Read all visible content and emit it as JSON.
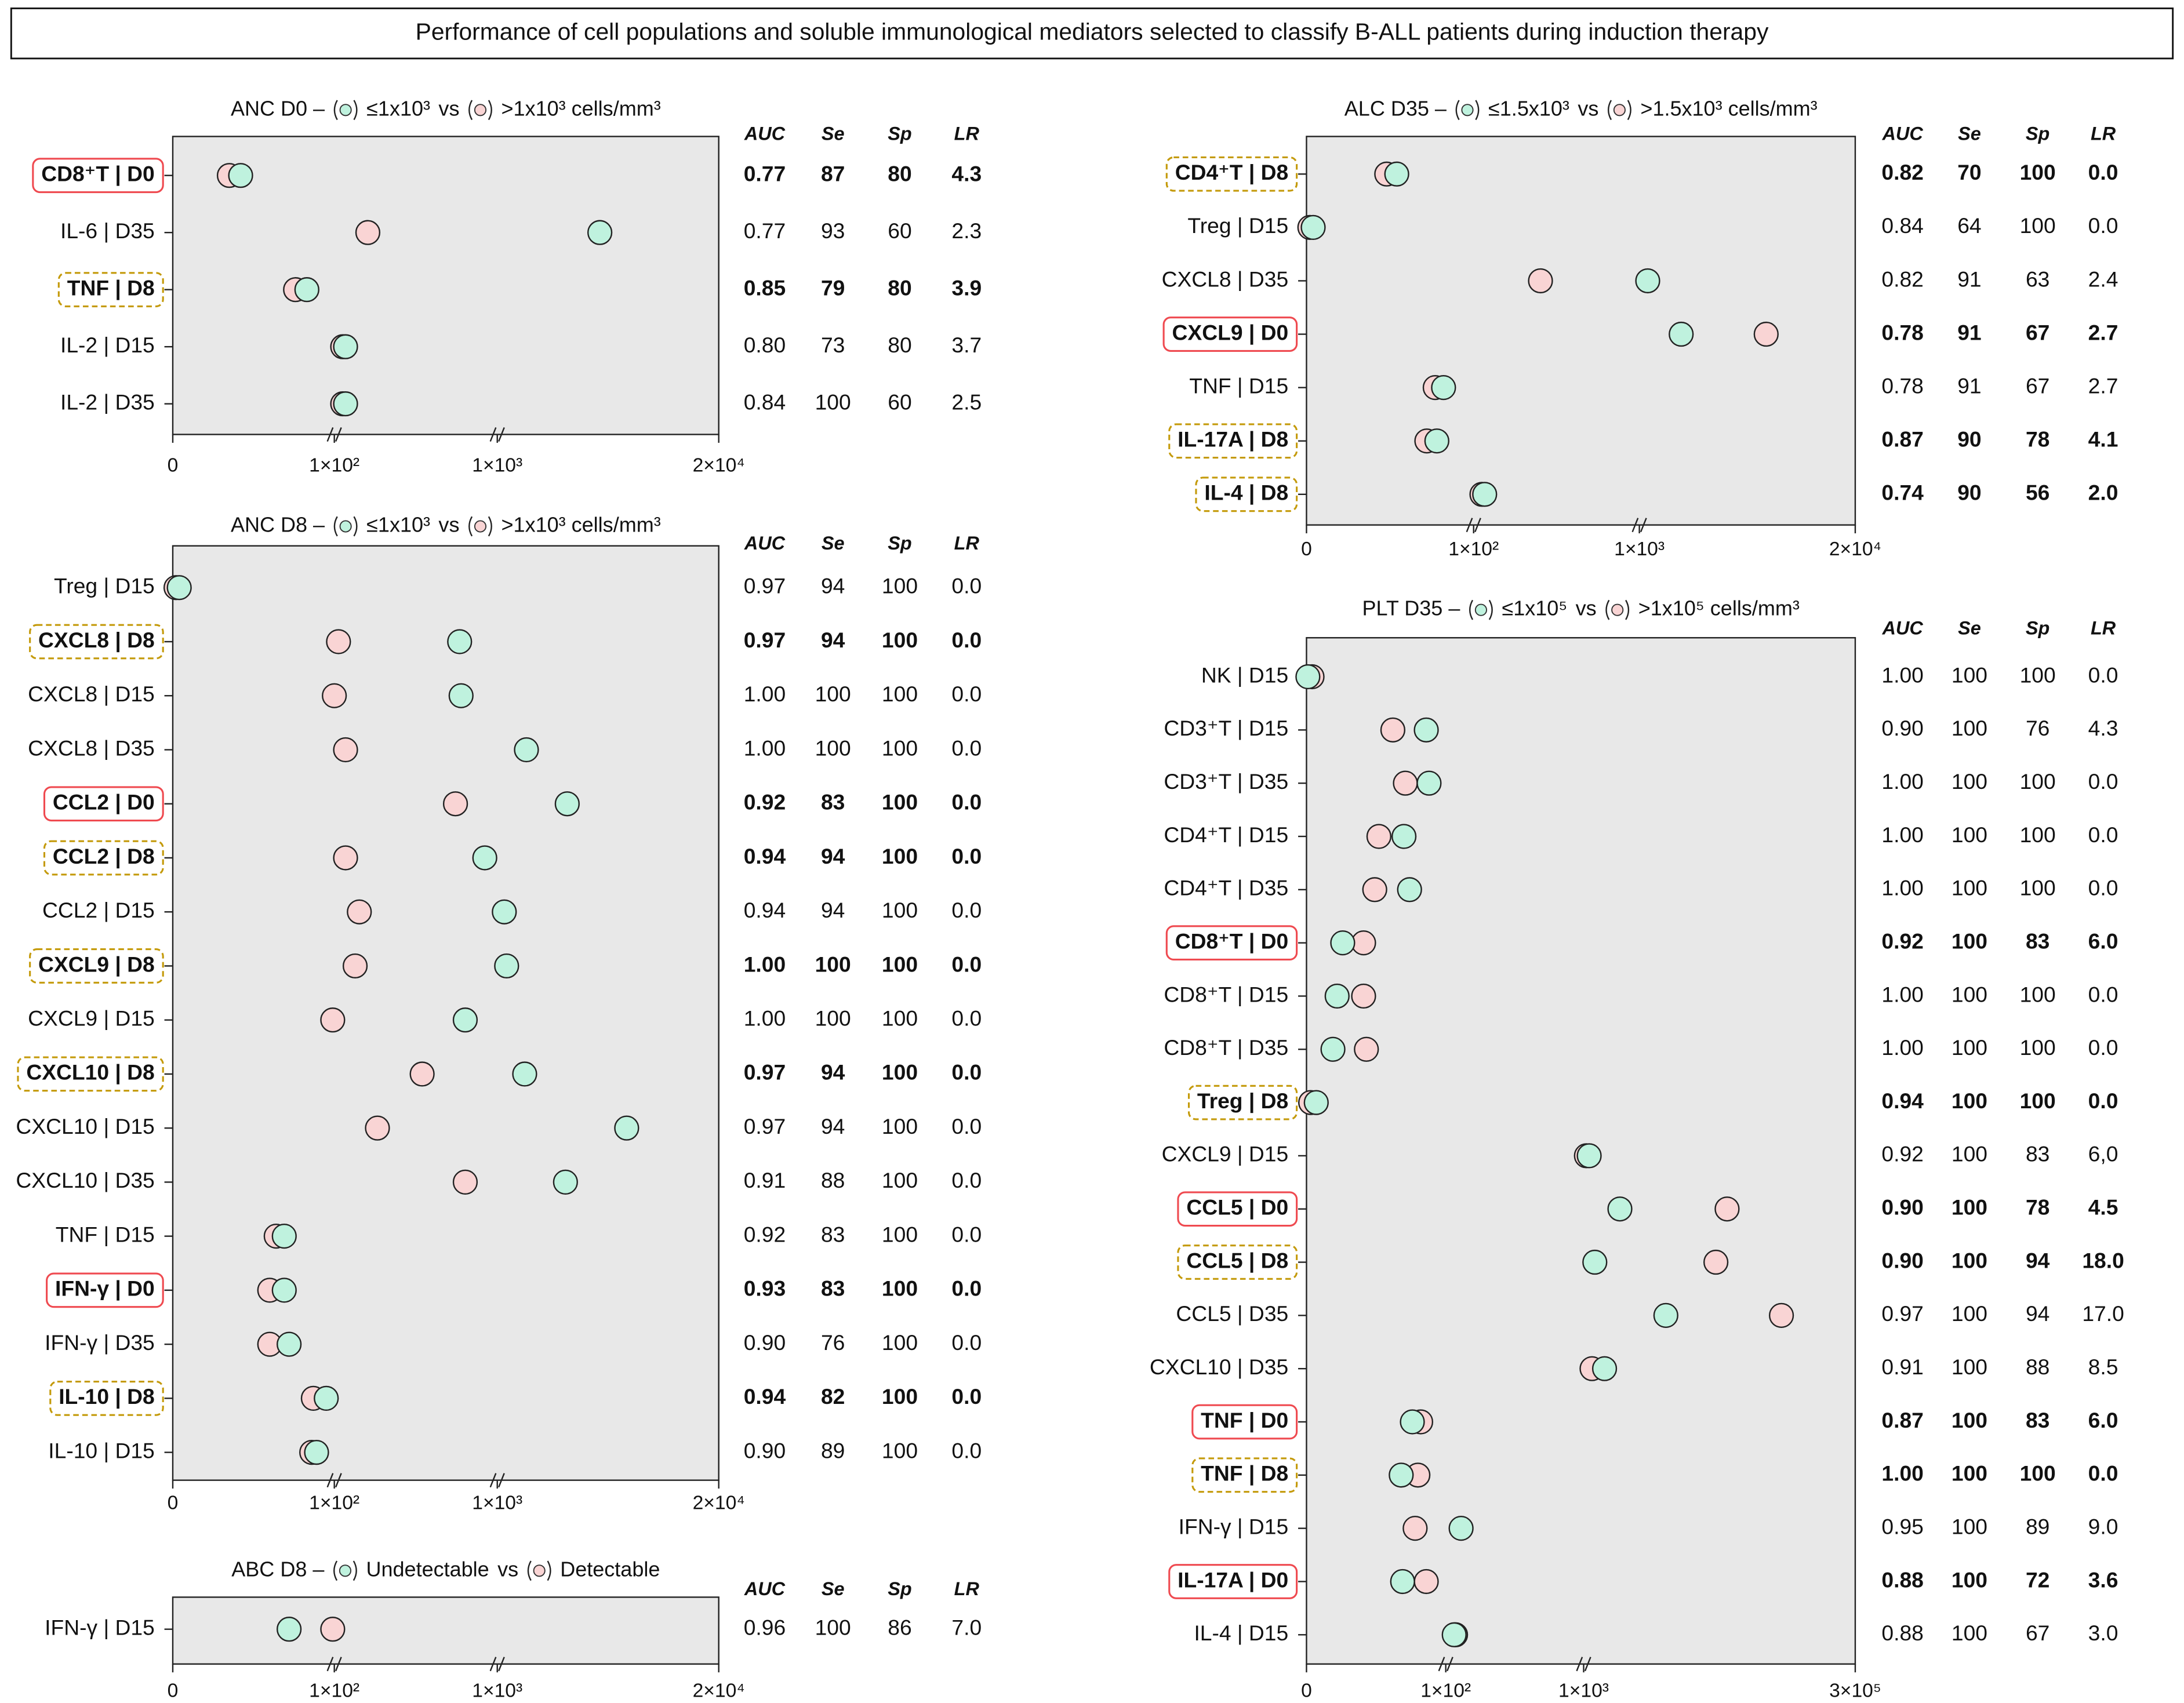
{
  "title": "Performance of cell populations and soluble immunological mediators selected to classify B-ALL patients during induction therapy",
  "columns": [
    "AUC",
    "Se",
    "Sp",
    "LR"
  ],
  "highlight_colors": {
    "solid": "#ef4a50",
    "dashed": "#c49a0a"
  },
  "chart_data": [
    {
      "type": "dot",
      "title": "ANC D0 –",
      "legend_join": "vs",
      "categories": [
        "CD8⁺T | D0",
        "IL-6 | D35",
        "TNF | D8",
        "IL-2 | D15",
        "IL-2 | D35"
      ],
      "highlight": [
        "solid",
        null,
        "dashed",
        null,
        null
      ],
      "series": [
        {
          "name": "≤1x10³",
          "color": "#bff2de",
          "values": [
            42,
            9800,
            83,
            162,
            162
          ]
        },
        {
          "name": ">1x10³ cells/mm³",
          "color": "#f9d4d4",
          "values": [
            35,
            285,
            76,
            146,
            146
          ]
        }
      ],
      "xlim": [
        0,
        20000
      ],
      "xticks": [
        0,
        {
          "value": 100,
          "label": "1×10²"
        },
        {
          "value": 1000,
          "label": "1×10³"
        },
        {
          "value": 20000,
          "label": "2×10⁴"
        }
      ],
      "table": [
        [
          "0.77",
          "87",
          "80",
          "4.3"
        ],
        [
          "0.77",
          "93",
          "60",
          "2.3"
        ],
        [
          "0.85",
          "79",
          "80",
          "3.9"
        ],
        [
          "0.80",
          "73",
          "80",
          "3.7"
        ],
        [
          "0.84",
          "100",
          "60",
          "2.5"
        ]
      ]
    },
    {
      "type": "dot",
      "title": "ANC D8 –",
      "legend_join": "vs",
      "categories": [
        "Treg | D15",
        "CXCL8 | D8",
        "CXCL8 | D15",
        "CXCL8 | D35",
        "CCL2 | D0",
        "CCL2 | D8",
        "CCL2 | D15",
        "CXCL9 | D8",
        "CXCL9 | D15",
        "CXCL10 | D8",
        "CXCL10 | D15",
        "CXCL10 | D35",
        "TNF | D15",
        "IFN-γ | D0",
        "IFN-γ | D35",
        "IL-10 | D8",
        "IL-10 | D15"
      ],
      "highlight": [
        null,
        "dashed",
        null,
        null,
        "solid",
        "dashed",
        null,
        "dashed",
        null,
        "dashed",
        null,
        null,
        null,
        "solid",
        null,
        "dashed",
        null
      ],
      "series": [
        {
          "name": "≤1x10³",
          "color": "#bff2de",
          "values": [
            4,
            792,
            800,
            3500,
            7000,
            931,
            1600,
            1800,
            823,
            3350,
            12100,
            6850,
            69,
            69,
            72,
            95,
            89
          ]
        },
        {
          "name": ">1x10³ cells/mm³",
          "color": "#f9d4d4",
          "values": [
            2,
            123,
            100,
            162,
            769,
            162,
            238,
            215,
            99,
            585,
            338,
            823,
            64,
            60,
            60,
            87,
            86
          ]
        }
      ],
      "xlim": [
        0,
        20000
      ],
      "xticks": [
        0,
        {
          "value": 100,
          "label": "1×10²"
        },
        {
          "value": 1000,
          "label": "1×10³"
        },
        {
          "value": 20000,
          "label": "2×10⁴"
        }
      ],
      "table": [
        [
          "0.97",
          "94",
          "100",
          "0.0"
        ],
        [
          "0.97",
          "94",
          "100",
          "0.0"
        ],
        [
          "1.00",
          "100",
          "100",
          "0.0"
        ],
        [
          "1.00",
          "100",
          "100",
          "0.0"
        ],
        [
          "0.92",
          "83",
          "100",
          "0.0"
        ],
        [
          "0.94",
          "94",
          "100",
          "0.0"
        ],
        [
          "0.94",
          "94",
          "100",
          "0.0"
        ],
        [
          "1.00",
          "100",
          "100",
          "0.0"
        ],
        [
          "1.00",
          "100",
          "100",
          "0.0"
        ],
        [
          "0.97",
          "94",
          "100",
          "0.0"
        ],
        [
          "0.97",
          "94",
          "100",
          "0.0"
        ],
        [
          "0.91",
          "88",
          "100",
          "0.0"
        ],
        [
          "0.92",
          "83",
          "100",
          "0.0"
        ],
        [
          "0.93",
          "83",
          "100",
          "0.0"
        ],
        [
          "0.90",
          "76",
          "100",
          "0.0"
        ],
        [
          "0.94",
          "82",
          "100",
          "0.0"
        ],
        [
          "0.90",
          "89",
          "100",
          "0.0"
        ]
      ]
    },
    {
      "type": "dot",
      "title": "ABC D8 –",
      "legend_join": "vs",
      "categories": [
        "IFN-γ | D15"
      ],
      "highlight": [
        null
      ],
      "series": [
        {
          "name": "Undetectable",
          "color": "#bff2de",
          "values": [
            72
          ]
        },
        {
          "name": "Detectable",
          "color": "#f9d4d4",
          "values": [
            99
          ]
        }
      ],
      "xlim": [
        0,
        20000
      ],
      "xticks": [
        0,
        {
          "value": 100,
          "label": "1×10²"
        },
        {
          "value": 1000,
          "label": "1×10³"
        },
        {
          "value": 20000,
          "label": "2×10⁴"
        }
      ],
      "table": [
        [
          "0.96",
          "100",
          "86",
          "7.0"
        ]
      ]
    },
    {
      "type": "dot",
      "title": "ALC D35 –",
      "legend_join": "vs",
      "categories": [
        "CD4⁺T | D8",
        "Treg | D15",
        "CXCL8 | D35",
        "CXCL9 | D0",
        "TNF | D15",
        "IL-17A | D8",
        "IL-4 | D8"
      ],
      "highlight": [
        "dashed",
        null,
        null,
        "solid",
        null,
        "dashed",
        "dashed"
      ],
      "series": [
        {
          "name": "≤1.5x10³",
          "color": "#bff2de",
          "values": [
            54,
            4,
            1735,
            4680,
            82,
            78,
            160
          ]
        },
        {
          "name": ">1.5x10³ cells/mm³",
          "color": "#f9d4d4",
          "values": [
            48,
            2,
            463,
            12160,
            77,
            72,
            145
          ]
        }
      ],
      "xlim": [
        0,
        20000
      ],
      "xticks": [
        0,
        {
          "value": 100,
          "label": "1×10²"
        },
        {
          "value": 1000,
          "label": "1×10³"
        },
        {
          "value": 20000,
          "label": "2×10⁴"
        }
      ],
      "table": [
        [
          "0.82",
          "70",
          "100",
          "0.0"
        ],
        [
          "0.84",
          "64",
          "100",
          "0.0"
        ],
        [
          "0.82",
          "91",
          "63",
          "2.4"
        ],
        [
          "0.78",
          "91",
          "67",
          "2.7"
        ],
        [
          "0.78",
          "91",
          "67",
          "2.7"
        ],
        [
          "0.87",
          "90",
          "78",
          "4.1"
        ],
        [
          "0.74",
          "90",
          "56",
          "2.0"
        ]
      ]
    },
    {
      "type": "dot",
      "title": "PLT D35 –",
      "legend_join": "vs",
      "categories": [
        "NK | D15",
        "CD3⁺T | D15",
        "CD3⁺T | D35",
        "CD4⁺T | D15",
        "CD4⁺T | D35",
        "CD8⁺T | D0",
        "CD8⁺T | D15",
        "CD8⁺T | D35",
        "Treg | D8",
        "CXCL9 | D15",
        "CCL5 | D0",
        "CCL5 | D8",
        "CCL5 | D35",
        "CXCL10 | D35",
        "TNF | D0",
        "TNF | D8",
        "IFN-γ | D15",
        "IL-17A | D0",
        "IL-4 | D15"
      ],
      "highlight": [
        null,
        null,
        null,
        null,
        null,
        "solid",
        null,
        null,
        "dashed",
        null,
        "solid",
        "dashed",
        null,
        null,
        "solid",
        "dashed",
        null,
        "solid",
        null
      ],
      "series": [
        {
          "name": "≤1x10⁵",
          "color": "#bff2de",
          "values": [
            1,
            86,
            88,
            70,
            74,
            26,
            22,
            19,
            7,
            7100,
            40900,
            13300,
            91500,
            24000,
            76,
            68,
            200,
            69,
            155
          ]
        },
        {
          "name": ">1x10⁵ cells/mm³",
          "color": "#f9d4d4",
          "values": [
            4,
            62,
            71,
            52,
            49,
            41,
            41,
            43,
            3,
            4000,
            158900,
            146600,
            218700,
            10200,
            82,
            80,
            78,
            86,
            164
          ]
        }
      ],
      "xlim": [
        0,
        300000
      ],
      "xticks": [
        0,
        {
          "value": 100,
          "label": "1×10²"
        },
        {
          "value": 1000,
          "label": "1×10³"
        },
        {
          "value": 300000,
          "label": "3×10⁵"
        }
      ],
      "table": [
        [
          "1.00",
          "100",
          "100",
          "0.0"
        ],
        [
          "0.90",
          "100",
          "76",
          "4.3"
        ],
        [
          "1.00",
          "100",
          "100",
          "0.0"
        ],
        [
          "1.00",
          "100",
          "100",
          "0.0"
        ],
        [
          "1.00",
          "100",
          "100",
          "0.0"
        ],
        [
          "0.92",
          "100",
          "83",
          "6.0"
        ],
        [
          "1.00",
          "100",
          "100",
          "0.0"
        ],
        [
          "1.00",
          "100",
          "100",
          "0.0"
        ],
        [
          "0.94",
          "100",
          "100",
          "0.0"
        ],
        [
          "0.92",
          "100",
          "83",
          "6,0"
        ],
        [
          "0.90",
          "100",
          "78",
          "4.5"
        ],
        [
          "0.90",
          "100",
          "94",
          "18.0"
        ],
        [
          "0.97",
          "100",
          "94",
          "17.0"
        ],
        [
          "0.91",
          "100",
          "88",
          "8.5"
        ],
        [
          "0.87",
          "100",
          "83",
          "6.0"
        ],
        [
          "1.00",
          "100",
          "100",
          "0.0"
        ],
        [
          "0.95",
          "100",
          "89",
          "9.0"
        ],
        [
          "0.88",
          "100",
          "72",
          "3.6"
        ],
        [
          "0.88",
          "100",
          "67",
          "3.0"
        ]
      ]
    }
  ]
}
